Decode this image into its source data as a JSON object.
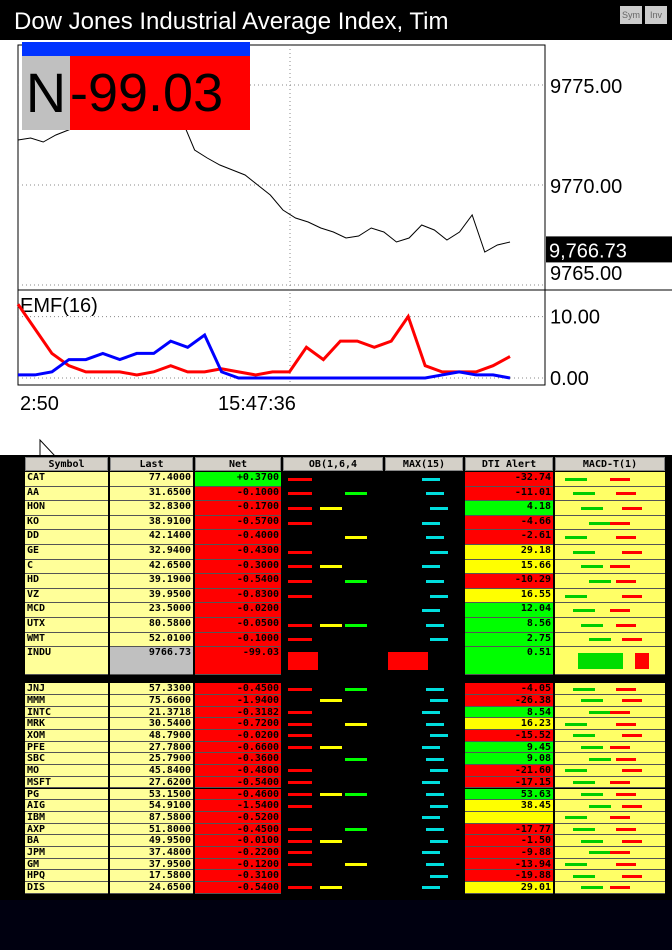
{
  "title": "Dow Jones Industrial Average Index, Tim",
  "buttons": [
    "Sym",
    "Inv"
  ],
  "badge": {
    "letter": "N",
    "value": "-99.03"
  },
  "chart_data": [
    {
      "type": "line",
      "color": "#000000",
      "ylim": [
        9765,
        9777
      ],
      "yticks": [
        {
          "value": 9775,
          "label": "9775.00"
        },
        {
          "value": 9770,
          "label": "9770.00"
        },
        {
          "value": 9765,
          "label": "9765.00"
        }
      ],
      "last": {
        "value": 9766.73,
        "label": "9,766.73"
      },
      "values": [
        9772.25,
        9772.35,
        9772.15,
        9772.5,
        9772.75,
        9773,
        9773.75,
        9774.25,
        9774.75,
        9775,
        9774.85,
        9774.75,
        9774.5,
        9773.25,
        9771.75,
        9771.35,
        9771,
        9770.75,
        9770.5,
        9770,
        9769.5,
        9768.75,
        9768.35,
        9768.15,
        9767.85,
        9767.65,
        9767.35,
        9767.45,
        9767.85,
        9767.65,
        9767.15,
        9767.35,
        9768,
        9767.75,
        9767.25,
        9767.65,
        9768.5,
        9766.65,
        9767,
        9767.15
      ],
      "xtick_labels": [
        "2:50",
        "15:47:36"
      ]
    },
    {
      "type": "line",
      "title": "EMF(16)",
      "ylim": [
        0,
        14
      ],
      "yticks": [
        {
          "value": 10,
          "label": "10.00"
        },
        {
          "value": 0,
          "label": "0.00"
        }
      ],
      "series": [
        {
          "color": "#ff0000",
          "values": [
            12,
            8,
            4,
            2,
            1,
            1,
            1,
            0.5,
            1,
            2,
            1,
            1,
            1.5,
            1,
            0.5,
            1,
            1,
            5,
            3,
            6,
            6,
            5,
            6,
            10,
            2,
            1,
            1,
            1,
            2,
            3.5
          ]
        },
        {
          "color": "#0000ff",
          "values": [
            0.5,
            0.5,
            1,
            3,
            3,
            4,
            3,
            4,
            4,
            6,
            5,
            7,
            1,
            0,
            0,
            0,
            0,
            0,
            0,
            0,
            0,
            0,
            0,
            0,
            0,
            0.5,
            1,
            0.5,
            0.5,
            0
          ]
        }
      ]
    }
  ],
  "table": {
    "headers": [
      "Symbol",
      "Last",
      "Net",
      "OB(1,6,4",
      "MAX(15)",
      "DTI Alert",
      "MACD-T(1)"
    ],
    "rows": [
      [
        "CAT",
        "77.4000",
        "+0.3700",
        "-32.74"
      ],
      [
        "AA",
        "31.6500",
        "-0.1000",
        "-11.01"
      ],
      [
        "HON",
        "32.8300",
        "-0.1700",
        "4.18"
      ],
      [
        "KO",
        "38.9100",
        "-0.5700",
        "-4.66"
      ],
      [
        "DD",
        "42.1400",
        "-0.4000",
        "-2.61"
      ],
      [
        "GE",
        "32.9400",
        "-0.4300",
        "29.18"
      ],
      [
        "C",
        "42.6500",
        "-0.3000",
        "15.66"
      ],
      [
        "HD",
        "39.1900",
        "-0.5400",
        "-10.29"
      ],
      [
        "VZ",
        "39.9500",
        "-0.8300",
        "16.55"
      ],
      [
        "MCD",
        "23.5000",
        "-0.0200",
        "12.04"
      ],
      [
        "UTX",
        "80.5800",
        "-0.0500",
        "8.56"
      ],
      [
        "WMT",
        "52.0100",
        "-0.1000",
        "2.75"
      ],
      [
        "INDU",
        "9766.73",
        "-99.03",
        "0.51"
      ],
      [
        "JNJ",
        "57.3300",
        "-0.4500",
        "-4.05"
      ],
      [
        "MMM",
        "75.6600",
        "-1.9400",
        "-26.38"
      ],
      [
        "INTC",
        "21.3718",
        "-0.3182",
        "8.54"
      ],
      [
        "MRK",
        "30.5400",
        "-0.7200",
        "16.23"
      ],
      [
        "XOM",
        "48.7900",
        "-0.0200",
        "-15.52"
      ],
      [
        "PFE",
        "27.7800",
        "-0.6600",
        "9.45"
      ],
      [
        "SBC",
        "25.7900",
        "-0.3600",
        "9.08"
      ],
      [
        "MO",
        "45.8400",
        "-0.4800",
        "-21.60"
      ],
      [
        "MSFT",
        "27.6200",
        "-0.5400",
        "-17.15"
      ],
      [
        "PG",
        "53.1500",
        "-0.4600",
        "53.63"
      ],
      [
        "AIG",
        "54.9100",
        "-1.5400",
        "38.45"
      ],
      [
        "IBM",
        "87.5800",
        "-0.5200",
        null
      ],
      [
        "AXP",
        "51.8000",
        "-0.4500",
        "-17.77"
      ],
      [
        "BA",
        "49.9500",
        "-0.0100",
        "-1.50"
      ],
      [
        "JPM",
        "37.4800",
        "-0.2200",
        "-9.88"
      ],
      [
        "GM",
        "37.9500",
        "-0.1200",
        "-13.94"
      ],
      [
        "HPQ",
        "17.5800",
        "-0.3100",
        "-19.88"
      ],
      [
        "DIS",
        "24.6500",
        "-0.5400",
        "29.01"
      ]
    ]
  }
}
